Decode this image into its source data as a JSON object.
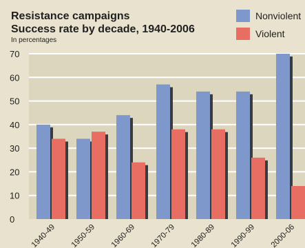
{
  "header": {
    "title_line1": "Resistance campaigns",
    "title_line2": "Success rate by decade, 1940-2006",
    "subtitle": "In percentages"
  },
  "colors": {
    "background": "#e9e2ce",
    "grid": "#ffffff",
    "nonviolent": "#7f98cc",
    "violent": "#e86e64",
    "shadow": "#3b3b3b"
  },
  "chart_data": {
    "type": "bar",
    "title": "Resistance campaigns\nSuccess rate by decade, 1940-2006",
    "subtitle": "In percentages",
    "categories": [
      "1940-49",
      "1950-59",
      "1960-69",
      "1970-79",
      "1980-89",
      "1990-99",
      "2000-06"
    ],
    "series": [
      {
        "name": "Nonviolent",
        "values": [
          40,
          34,
          44,
          57,
          54,
          54,
          70
        ]
      },
      {
        "name": "Violent",
        "values": [
          34,
          37,
          24,
          38,
          38,
          26,
          14
        ]
      }
    ],
    "ylim": [
      0,
      70
    ],
    "yticks": [
      0,
      10,
      20,
      30,
      40,
      50,
      60,
      70
    ],
    "grid": true,
    "legend": "top-right"
  }
}
